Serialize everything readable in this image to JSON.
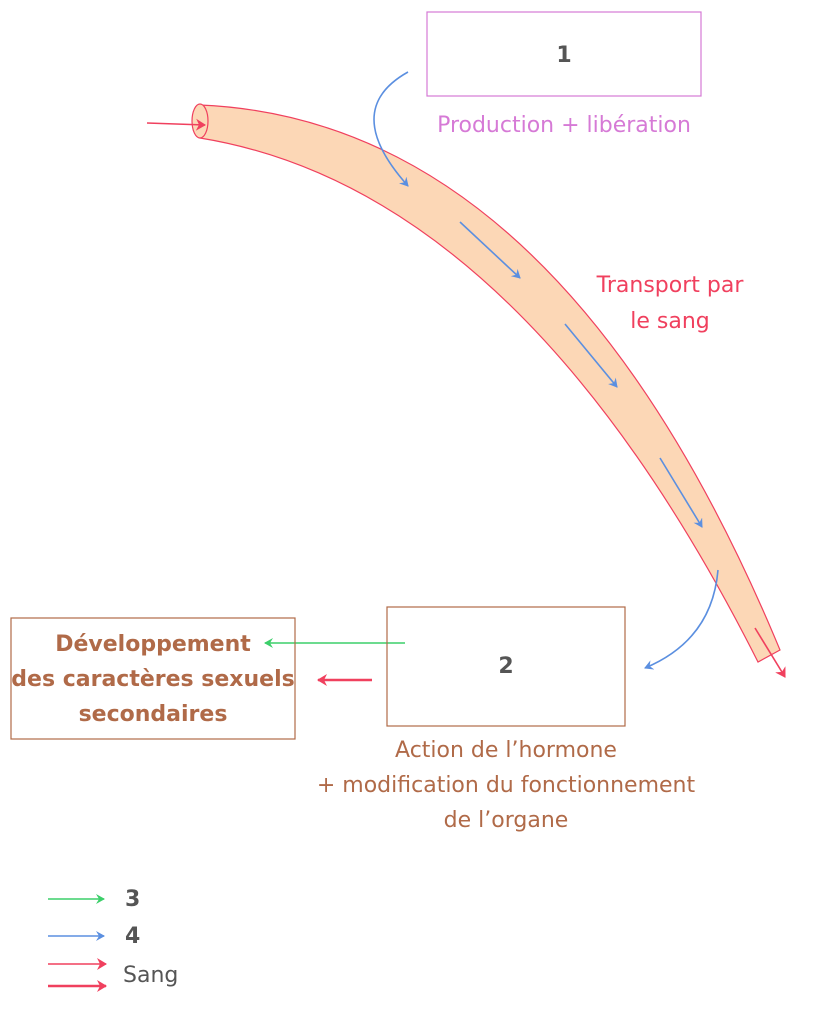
{
  "box1": {
    "label": "1",
    "caption": "Production + libération"
  },
  "vessel": {
    "caption": [
      "Transport par",
      "le sang"
    ]
  },
  "box2": {
    "label": "2",
    "caption": [
      "Action de l’hormone",
      "+ modification du fonctionnement",
      "de l’organe"
    ]
  },
  "effect": {
    "lines": [
      "Développement",
      "des caractères sexuels",
      "secondaires"
    ]
  },
  "legend": [
    {
      "label": "3"
    },
    {
      "label": "4"
    },
    {
      "label": "Sang"
    }
  ]
}
